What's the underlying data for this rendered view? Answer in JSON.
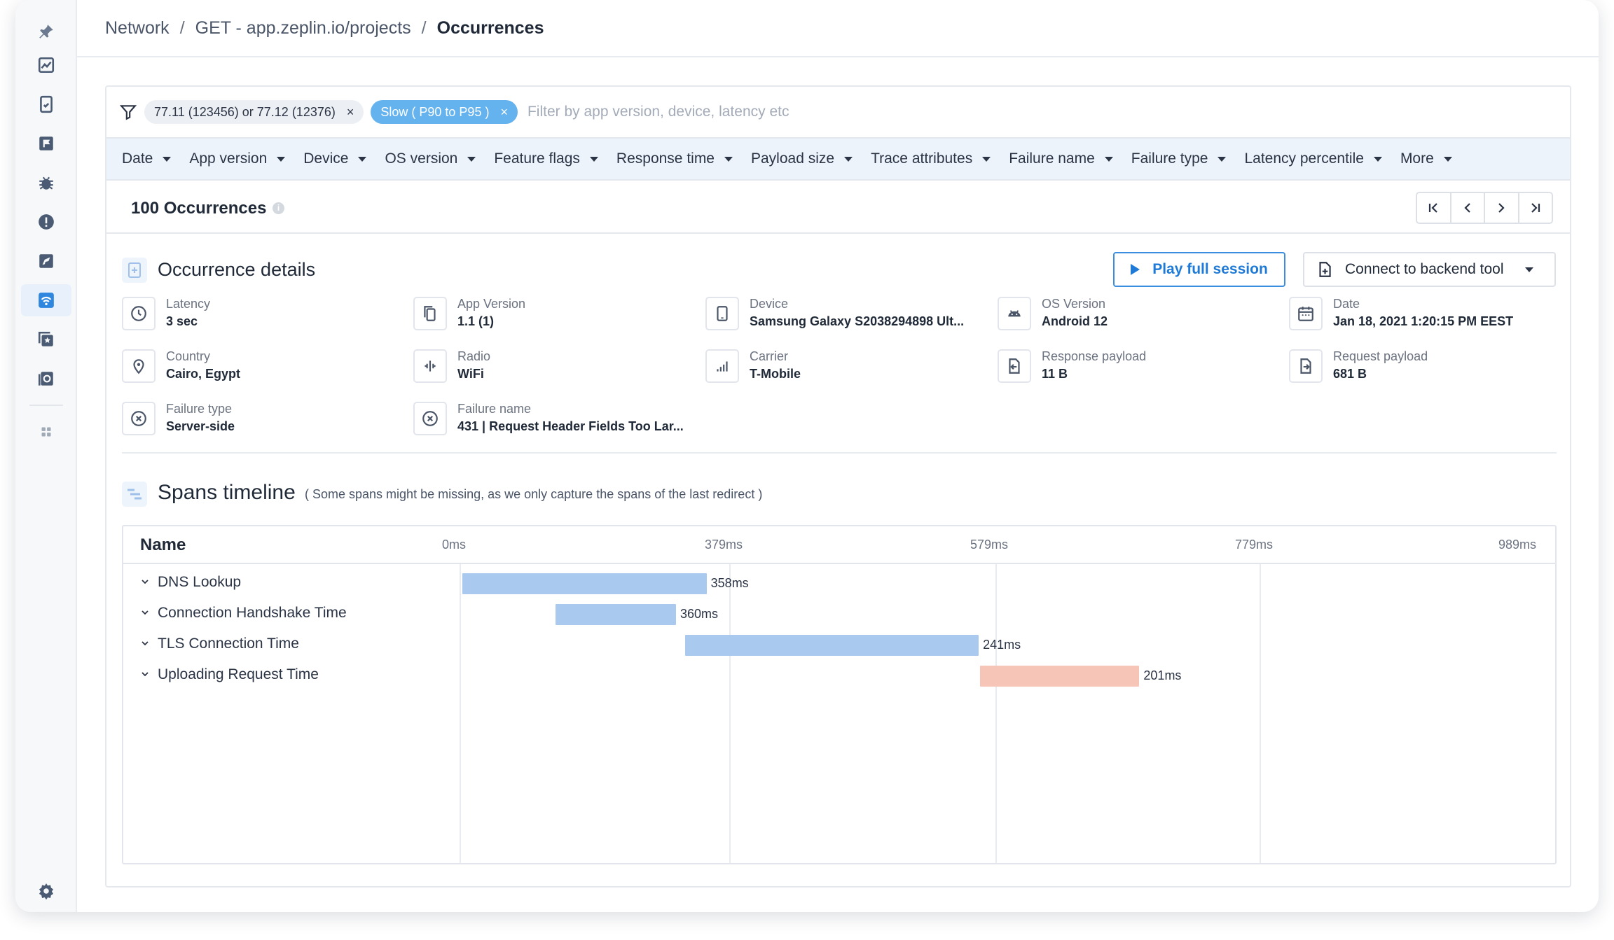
{
  "breadcrumb": {
    "root": "Network",
    "request": "GET - app.zeplin.io/projects",
    "current": "Occurrences"
  },
  "filters": {
    "chips": [
      {
        "label": "77.11 (123456) or 77.12 (12376)",
        "style": "gray",
        "remove": "×"
      },
      {
        "label": "Slow ( P90 to P95 )",
        "style": "blue",
        "remove": "×"
      }
    ],
    "placeholder": "Filter by app version, device, latency etc"
  },
  "dropdowns": [
    "Date",
    "App version",
    "Device",
    "OS version",
    "Feature flags",
    "Response time",
    "Payload size",
    "Trace attributes",
    "Failure name",
    "Failure type",
    "Latency percentile",
    "More"
  ],
  "occurrences": {
    "count_label": "100 Occurrences"
  },
  "details": {
    "title": "Occurrence details",
    "play_button": "Play full session",
    "backend_button": "Connect to backend tool",
    "items": [
      {
        "icon": "clock-icon",
        "label": "Latency",
        "value": "3 sec"
      },
      {
        "icon": "copy-icon",
        "label": "App Version",
        "value": "1.1 (1)"
      },
      {
        "icon": "phone-icon",
        "label": "Device",
        "value": "Samsung Galaxy S2038294898 Ult..."
      },
      {
        "icon": "android-icon",
        "label": "OS Version",
        "value": "Android 12"
      },
      {
        "icon": "calendar-icon",
        "label": "Date",
        "value": "Jan 18, 2021 1:20:15 PM EEST"
      },
      {
        "icon": "location-pin-icon",
        "label": "Country",
        "value": "Cairo, Egypt"
      },
      {
        "icon": "radio-icon",
        "label": "Radio",
        "value": "WiFi"
      },
      {
        "icon": "carrier-icon",
        "label": "Carrier",
        "value": "T-Mobile"
      },
      {
        "icon": "response-payload-icon",
        "label": "Response payload",
        "value": "11 B"
      },
      {
        "icon": "request-payload-icon",
        "label": "Request payload",
        "value": "681 B"
      },
      {
        "icon": "x-circle-icon",
        "label": "Failure type",
        "value": "Server-side"
      },
      {
        "icon": "x-circle-icon",
        "label": "Failure name",
        "value": "431 | Request Header Fields Too Lar..."
      }
    ]
  },
  "spans": {
    "title": "Spans timeline",
    "note": "( Some spans might be missing, as we only capture the spans of the last redirect )",
    "name_header": "Name",
    "ticks": [
      "0ms",
      "379ms",
      "579ms",
      "779ms",
      "989ms"
    ],
    "rows": [
      {
        "name": "DNS Lookup",
        "duration_label": "358ms",
        "color": "#a9c9ef",
        "start_frac": 0.0,
        "end_frac": 0.2235
      },
      {
        "name": "Connection Handshake Time",
        "duration_label": "360ms",
        "color": "#a9c9ef",
        "start_frac": 0.0855,
        "end_frac": 0.1955
      },
      {
        "name": "TLS Connection Time",
        "duration_label": "241ms",
        "color": "#a9c9ef",
        "start_frac": 0.204,
        "end_frac": 0.4725
      },
      {
        "name": "Uploading Request Time",
        "duration_label": "201ms",
        "color": "#f7c4b8",
        "start_frac": 0.4735,
        "end_frac": 0.6195
      }
    ]
  }
}
